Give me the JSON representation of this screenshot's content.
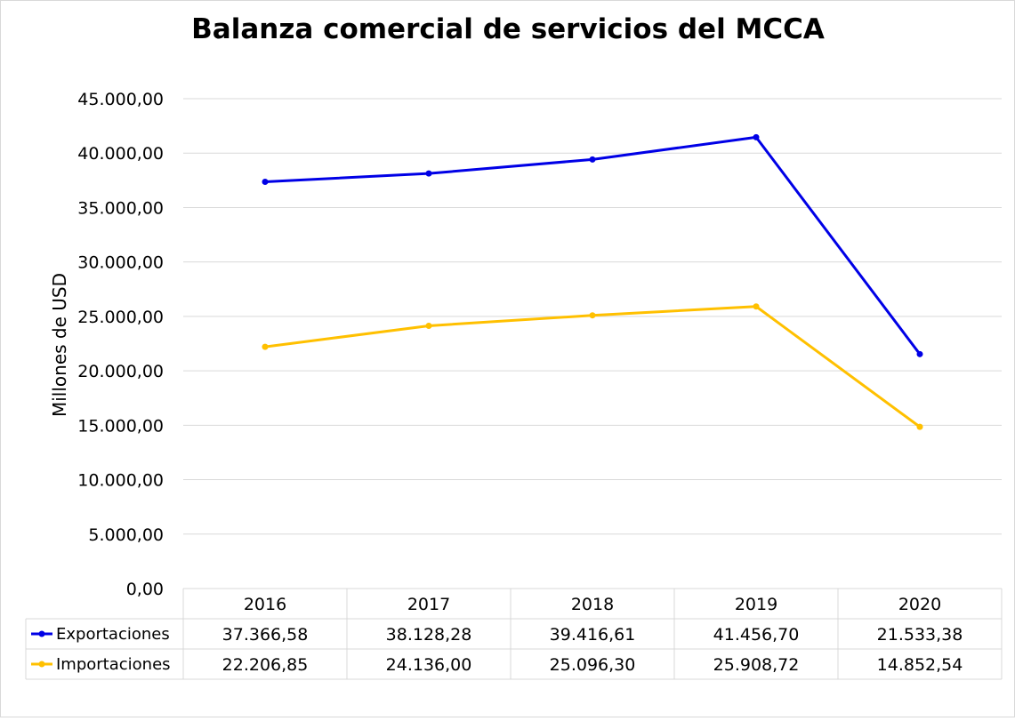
{
  "chart_data": {
    "type": "line",
    "title": "Balanza comercial de servicios del MCCA",
    "ylabel": "Millones de USD",
    "xlabel": "",
    "ylim": [
      0,
      45000
    ],
    "yticks": [
      "0,00",
      "5.000,00",
      "10.000,00",
      "15.000,00",
      "20.000,00",
      "25.000,00",
      "30.000,00",
      "35.000,00",
      "40.000,00",
      "45.000,00"
    ],
    "ytick_values": [
      0,
      5000,
      10000,
      15000,
      20000,
      25000,
      30000,
      35000,
      40000,
      45000
    ],
    "grid": true,
    "legend": "data-table",
    "categories": [
      "2016",
      "2017",
      "2018",
      "2019",
      "2020"
    ],
    "series": [
      {
        "name": "Exportaciones",
        "color": "#0000e6",
        "values": [
          37366.58,
          38128.28,
          39416.61,
          41456.7,
          21533.38
        ],
        "labels": [
          "37.366,58",
          "38.128,28",
          "39.416,61",
          "41.456,70",
          "21.533,38"
        ]
      },
      {
        "name": "Importaciones",
        "color": "#ffc000",
        "values": [
          22206.85,
          24136.0,
          25096.3,
          25908.72,
          14852.54
        ],
        "labels": [
          "22.206,85",
          "24.136,00",
          "25.096,30",
          "25.908,72",
          "14.852,54"
        ]
      }
    ]
  }
}
